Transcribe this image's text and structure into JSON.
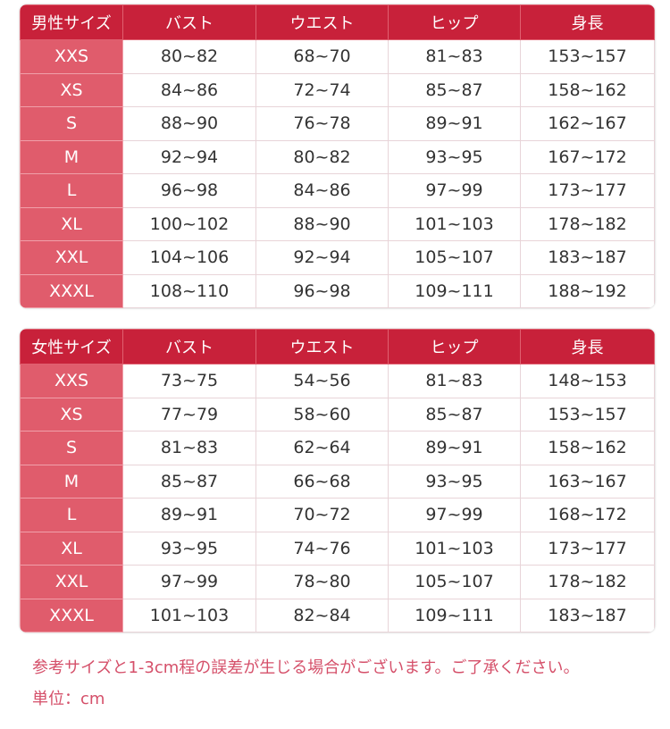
{
  "colors": {
    "header": "#c8213a",
    "size_column": "#e05c6c",
    "note": "#d5506a"
  },
  "men": {
    "headers": [
      "男性サイズ",
      "バスト",
      "ウエスト",
      "ヒップ",
      "身長"
    ],
    "rows": [
      [
        "XXS",
        "80~82",
        "68~70",
        "81~83",
        "153~157"
      ],
      [
        "XS",
        "84~86",
        "72~74",
        "85~87",
        "158~162"
      ],
      [
        "S",
        "88~90",
        "76~78",
        "89~91",
        "162~167"
      ],
      [
        "M",
        "92~94",
        "80~82",
        "93~95",
        "167~172"
      ],
      [
        "L",
        "96~98",
        "84~86",
        "97~99",
        "173~177"
      ],
      [
        "XL",
        "100~102",
        "88~90",
        "101~103",
        "178~182"
      ],
      [
        "XXL",
        "104~106",
        "92~94",
        "105~107",
        "183~187"
      ],
      [
        "XXXL",
        "108~110",
        "96~98",
        "109~111",
        "188~192"
      ]
    ]
  },
  "women": {
    "headers": [
      "女性サイズ",
      "バスト",
      "ウエスト",
      "ヒップ",
      "身長"
    ],
    "rows": [
      [
        "XXS",
        "73~75",
        "54~56",
        "81~83",
        "148~153"
      ],
      [
        "XS",
        "77~79",
        "58~60",
        "85~87",
        "153~157"
      ],
      [
        "S",
        "81~83",
        "62~64",
        "89~91",
        "158~162"
      ],
      [
        "M",
        "85~87",
        "66~68",
        "93~95",
        "163~167"
      ],
      [
        "L",
        "89~91",
        "70~72",
        "97~99",
        "168~172"
      ],
      [
        "XL",
        "93~95",
        "74~76",
        "101~103",
        "173~177"
      ],
      [
        "XXL",
        "97~99",
        "78~80",
        "105~107",
        "178~182"
      ],
      [
        "XXXL",
        "101~103",
        "82~84",
        "109~111",
        "183~187"
      ]
    ]
  },
  "notes": {
    "disclaimer": "参考サイズと1-3cm程の誤差が生じる場合がございます。ご了承ください。",
    "unit": "単位：cm"
  }
}
